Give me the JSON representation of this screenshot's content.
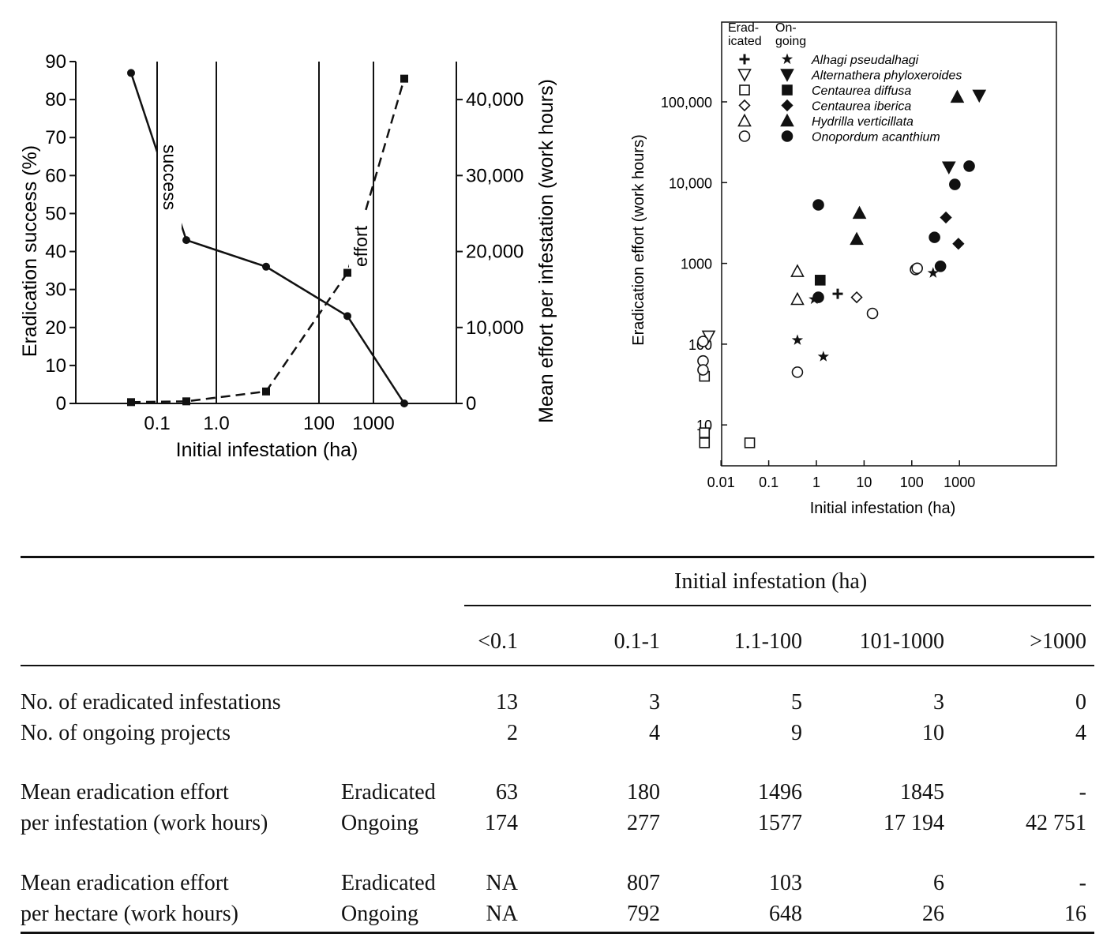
{
  "chart_data": [
    {
      "type": "line",
      "xlabel": "Initial infestation (ha)",
      "ylabel": "Eradication success (%)",
      "y2label": "Mean effort per infestation (work hours)",
      "x_tick_labels": [
        "0.1",
        "1.0",
        "100",
        "1000"
      ],
      "y_ticks": [
        "0",
        "10",
        "20",
        "30",
        "40",
        "50",
        "60",
        "70",
        "80",
        "90"
      ],
      "y2_ticks": [
        "0",
        "10,000",
        "20,000",
        "30,000",
        "40,000"
      ],
      "ylim": [
        0,
        90
      ],
      "y2lim": [
        0,
        45000
      ],
      "categories": [
        "<0.1",
        "0.1-1",
        "1.1-100",
        "101-1000",
        ">1000"
      ],
      "series": [
        {
          "name": "success",
          "axis": "left",
          "style": "solid",
          "marker": "circle",
          "values": [
            87,
            43,
            36,
            23,
            0
          ]
        },
        {
          "name": "effort",
          "axis": "right",
          "style": "dashed",
          "marker": "square",
          "values": [
            174,
            277,
            1577,
            17194,
            42751
          ]
        }
      ]
    },
    {
      "type": "scatter",
      "xlabel": "Initial infestation (ha)",
      "ylabel": "Eradication effort (work hours)",
      "xscale": "log",
      "yscale": "log",
      "xlim": [
        0.001,
        5000
      ],
      "ylim": [
        3,
        400000
      ],
      "x_tick_labels": [
        "0.01",
        "0.1",
        "1",
        "10",
        "100",
        "1000"
      ],
      "y_tick_labels": [
        "10",
        "100",
        "1000",
        "10,000",
        "100,000"
      ],
      "legend_headers": [
        "Erad-\nicated",
        "On-\ngoing"
      ],
      "legend_position": "top-left",
      "species": [
        {
          "name": "Alhagi pseudalhagi",
          "eradicated_marker": "plus",
          "ongoing_marker": "star",
          "eradicated": [
            [
              2.8,
              420
            ]
          ],
          "ongoing": [
            [
              0.4,
              112
            ],
            [
              1.4,
              70
            ],
            [
              0.9,
              360
            ],
            [
              280,
              760
            ]
          ]
        },
        {
          "name": "Alternathera phyloxeroides",
          "eradicated_marker": "triangle-down-open",
          "ongoing_marker": "triangle-down-filled",
          "eradicated": [
            [
              0.0055,
              125
            ]
          ],
          "ongoing": [
            [
              600,
              15500
            ],
            [
              2600,
              120000
            ]
          ]
        },
        {
          "name": "Centaurea diffusa",
          "eradicated_marker": "square-open",
          "ongoing_marker": "square-filled",
          "eradicated": [
            [
              0.0045,
              40
            ],
            [
              0.0045,
              8
            ],
            [
              0.0045,
              6
            ],
            [
              0.04,
              6
            ]
          ],
          "ongoing": [
            [
              1.2,
              620
            ]
          ]
        },
        {
          "name": "Centaurea iberica",
          "eradicated_marker": "diamond-open",
          "ongoing_marker": "diamond-filled",
          "eradicated": [
            [
              7,
              380
            ]
          ],
          "ongoing": [
            [
              520,
              3700
            ],
            [
              950,
              1750
            ]
          ]
        },
        {
          "name": "Hydrilla verticillata",
          "eradicated_marker": "triangle-up-open",
          "ongoing_marker": "triangle-up-filled",
          "eradicated": [
            [
              0.4,
              800
            ],
            [
              0.4,
              360
            ]
          ],
          "ongoing": [
            [
              7,
              2000
            ],
            [
              8,
              4200
            ],
            [
              900,
              115000
            ]
          ]
        },
        {
          "name": "Onopordum acanthium",
          "eradicated_marker": "circle-open",
          "ongoing_marker": "circle-filled",
          "eradicated": [
            [
              0.0042,
              108
            ],
            [
              0.0042,
              62
            ],
            [
              0.0042,
              48
            ],
            [
              0.4,
              45
            ],
            [
              15,
              240
            ],
            [
              120,
              840
            ],
            [
              130,
              870
            ]
          ],
          "ongoing": [
            [
              1.1,
              5300
            ],
            [
              1.1,
              380
            ],
            [
              300,
              2100
            ],
            [
              400,
              920
            ],
            [
              800,
              9500
            ],
            [
              1600,
              16000
            ]
          ]
        }
      ]
    },
    {
      "type": "table",
      "header_group": "Initial infestation (ha)",
      "columns": [
        "<0.1",
        "0.1-1",
        "1.1-100",
        "101-1000",
        ">1000"
      ],
      "rows": [
        {
          "label": "No. of eradicated infestations",
          "sublabel": "",
          "values": [
            "13",
            "3",
            "5",
            "3",
            "0"
          ]
        },
        {
          "label": "No. of ongoing projects",
          "sublabel": "",
          "values": [
            "2",
            "4",
            "9",
            "10",
            "4"
          ]
        },
        {
          "label": "Mean eradication effort",
          "sublabel": "Eradicated",
          "values": [
            "63",
            "180",
            "1496",
            "1845",
            "-"
          ]
        },
        {
          "label": "per infestation (work hours)",
          "sublabel": "Ongoing",
          "values": [
            "174",
            "277",
            "1577",
            "17 194",
            "42 751"
          ]
        },
        {
          "label": "Mean eradication effort",
          "sublabel": "Eradicated",
          "values": [
            "NA",
            "807",
            "103",
            "6",
            "-"
          ]
        },
        {
          "label": "per hectare (work hours)",
          "sublabel": "Ongoing",
          "values": [
            "NA",
            "792",
            "648",
            "26",
            "16"
          ]
        }
      ]
    }
  ]
}
